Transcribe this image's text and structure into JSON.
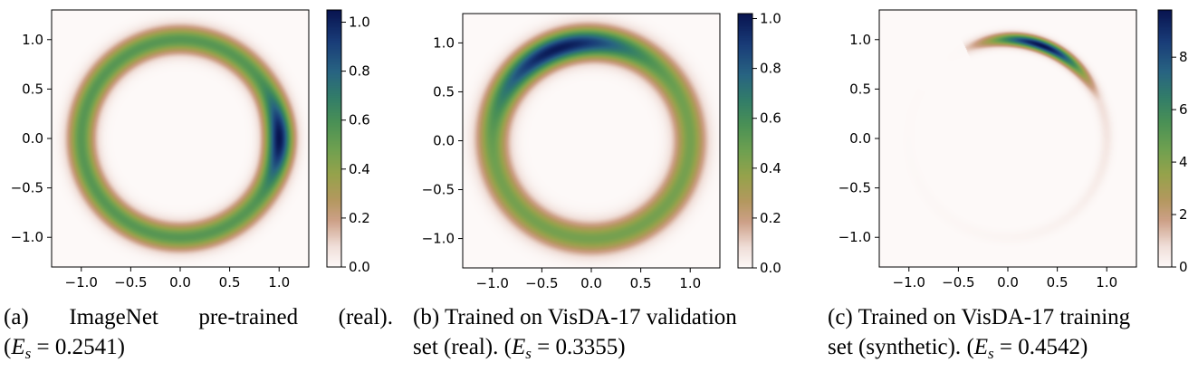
{
  "chart_data": [
    {
      "type": "heatmap",
      "xlim": [
        -1.3,
        1.3
      ],
      "ylim": [
        -1.3,
        1.3
      ],
      "x_ticks": [
        -1.0,
        -0.5,
        0.0,
        0.5,
        1.0
      ],
      "y_ticks": [
        -1.0,
        -0.5,
        0.0,
        0.5,
        1.0
      ],
      "x_tick_labels": [
        "−1.0",
        "−0.5",
        "0.0",
        "0.5",
        "1.0"
      ],
      "y_tick_labels": [
        "−1.0",
        "−0.5",
        "0.0",
        "0.5",
        "1.0"
      ],
      "colorbar": {
        "min": 0.0,
        "max": 1.05,
        "ticks": [
          0.0,
          0.2,
          0.4,
          0.6,
          0.8,
          1.0
        ],
        "tick_labels": [
          "0.0",
          "0.2",
          "0.4",
          "0.6",
          "0.8",
          "1.0"
        ]
      },
      "density": {
        "ring_radius": 1.0,
        "ring_width": 0.13,
        "base_peak": 0.55,
        "hotspot_angle_deg": 0,
        "hotspot_peak": 1.05,
        "hotspot_spread_deg": 22,
        "tail_fade": 0.0
      },
      "caption": {
        "label": "(a)",
        "line1": "ImageNet pre-trained (real).",
        "metric_name": "E",
        "metric_sub": "s",
        "metric_value": "0.2541"
      }
    },
    {
      "type": "heatmap",
      "xlim": [
        -1.3,
        1.3
      ],
      "ylim": [
        -1.3,
        1.3
      ],
      "x_ticks": [
        -1.0,
        -0.5,
        0.0,
        0.5,
        1.0
      ],
      "y_ticks": [
        -1.0,
        -0.5,
        0.0,
        0.5,
        1.0
      ],
      "x_tick_labels": [
        "−1.0",
        "−0.5",
        "0.0",
        "0.5",
        "1.0"
      ],
      "y_tick_labels": [
        "−1.0",
        "−0.5",
        "0.0",
        "0.5",
        "1.0"
      ],
      "colorbar": {
        "min": 0.0,
        "max": 1.02,
        "ticks": [
          0.0,
          0.2,
          0.4,
          0.6,
          0.8,
          1.0
        ],
        "tick_labels": [
          "0.0",
          "0.2",
          "0.4",
          "0.6",
          "0.8",
          "1.0"
        ]
      },
      "density": {
        "ring_radius": 1.0,
        "ring_width": 0.15,
        "base_peak": 0.45,
        "hotspot_angle_deg": 110,
        "hotspot_peak": 1.0,
        "hotspot_spread_deg": 45,
        "tail_fade": 0.0
      },
      "caption": {
        "label": "(b)",
        "line1": "Trained on VisDA-17 validation",
        "line2": "set (real).",
        "metric_name": "E",
        "metric_sub": "s",
        "metric_value": "0.3355"
      }
    },
    {
      "type": "heatmap",
      "xlim": [
        -1.3,
        1.3
      ],
      "ylim": [
        -1.3,
        1.3
      ],
      "x_ticks": [
        -1.0,
        -0.5,
        0.0,
        0.5,
        1.0
      ],
      "y_ticks": [
        -1.0,
        -0.5,
        0.0,
        0.5,
        1.0
      ],
      "x_tick_labels": [
        "−1.0",
        "−0.5",
        "0.0",
        "0.5",
        "1.0"
      ],
      "y_tick_labels": [
        "−1.0",
        "−0.5",
        "0.0",
        "0.5",
        "1.0"
      ],
      "colorbar": {
        "min": 0,
        "max": 9.8,
        "ticks": [
          0,
          2,
          4,
          6,
          8
        ],
        "tick_labels": [
          "0",
          "2",
          "4",
          "6",
          "8"
        ]
      },
      "density": {
        "ring_radius": 1.0,
        "ring_width": 0.06,
        "base_peak": 0.0,
        "hotspot_angle_deg": 70,
        "hotspot_peak": 9.8,
        "hotspot_spread_deg": 30,
        "tail_fade": 1.0
      },
      "caption": {
        "label": "(c)",
        "line1": "Trained on VisDA-17 training",
        "line2": "set (synthetic).",
        "metric_name": "E",
        "metric_sub": "s",
        "metric_value": "0.4542"
      }
    }
  ]
}
